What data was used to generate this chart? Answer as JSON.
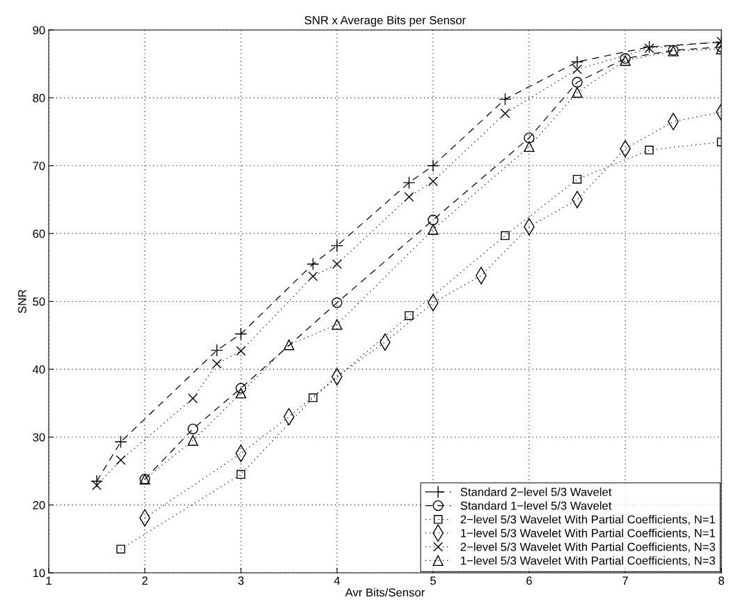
{
  "chart_data": {
    "type": "line",
    "title": "SNR x Average Bits per Sensor",
    "xlabel": "Avr Bits/Sensor",
    "ylabel": "SNR",
    "xlim": [
      1,
      8
    ],
    "ylim": [
      10,
      90
    ],
    "xticks": [
      1,
      2,
      3,
      4,
      5,
      6,
      7,
      8
    ],
    "yticks": [
      10,
      20,
      30,
      40,
      50,
      60,
      70,
      80,
      90
    ],
    "grid": true,
    "legend": "bottom right",
    "series": [
      {
        "name": "Standard 2−level 5/3 Wavelet",
        "color": "#000000",
        "marker": "plus",
        "line_style": "dashed",
        "x": [
          1.5,
          1.75,
          2.75,
          3,
          3.75,
          4,
          4.75,
          5,
          5.75,
          6.5,
          7.25,
          8
        ],
        "values": [
          23.5,
          29.3,
          42.8,
          45.2,
          55.5,
          58.2,
          67.5,
          70,
          79.8,
          85.3,
          87.5,
          88.2
        ]
      },
      {
        "name": "Standard 1−level 5/3 Wavelet",
        "color": "#000000",
        "marker": "circle",
        "line_style": "dashed",
        "x": [
          2,
          2.5,
          3,
          4,
          5,
          6,
          6.5,
          7,
          7.5,
          8
        ],
        "values": [
          23.8,
          31.2,
          37.2,
          49.8,
          62,
          74.1,
          82.3,
          85.8,
          87,
          87.5
        ]
      },
      {
        "name": "2−level 5/3 Wavelet With Partial Coefficients, N=1",
        "color": "#000000",
        "marker": "square",
        "line_style": "dotted",
        "x": [
          1.75,
          3,
          3.75,
          4.75,
          5.75,
          6.5,
          7.25,
          8
        ],
        "values": [
          13.5,
          24.5,
          35.8,
          47.9,
          59.7,
          68,
          72.3,
          73.5
        ]
      },
      {
        "name": "1−level 5/3 Wavelet With Partial Coefficients, N=1",
        "color": "#000000",
        "marker": "diamond",
        "line_style": "dotted",
        "x": [
          2,
          3,
          3.5,
          4,
          4.5,
          5,
          5.5,
          6,
          6.5,
          7,
          7.5,
          8
        ],
        "values": [
          18.1,
          27.6,
          33,
          38.9,
          44,
          49.8,
          53.8,
          61,
          65,
          72.5,
          76.5,
          77.9
        ]
      },
      {
        "name": "2−level 5/3 Wavelet With Partial Coefficients, N=3",
        "color": "#000000",
        "marker": "cross",
        "line_style": "dotted",
        "x": [
          1.5,
          1.75,
          2.5,
          2.75,
          3,
          3.75,
          4,
          4.75,
          5,
          5.75,
          6.5,
          7.25,
          8
        ],
        "values": [
          22.9,
          26.6,
          35.7,
          40.8,
          42.7,
          53.7,
          55.5,
          65.4,
          67.7,
          77.7,
          84.2,
          87.3,
          88.3
        ]
      },
      {
        "name": "1−level 5/3 Wavelet With Partial Coefficients, N=3",
        "color": "#000000",
        "marker": "triangle",
        "line_style": "dotted",
        "x": [
          2,
          2.5,
          3,
          3.5,
          4,
          5,
          6,
          6.5,
          7,
          7.5,
          8
        ],
        "values": [
          23.8,
          29.5,
          36.5,
          43.6,
          46.6,
          60.6,
          72.8,
          80.8,
          85.5,
          86.9,
          87.2
        ]
      }
    ]
  }
}
